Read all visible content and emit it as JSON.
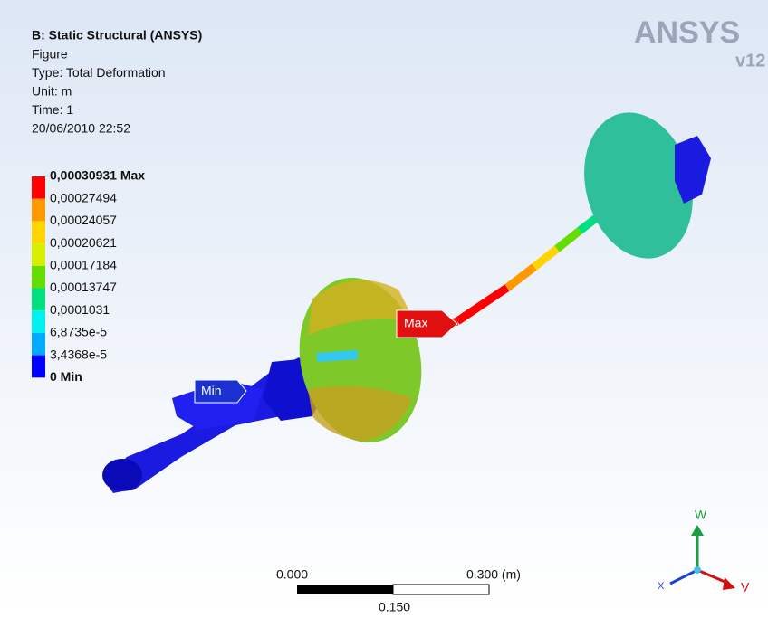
{
  "header": {
    "title": "B: Static Structural (ANSYS)",
    "lines": [
      "Figure",
      "Type: Total Deformation",
      "Unit: m",
      "Time: 1",
      "20/06/2010 22:52"
    ]
  },
  "logo": {
    "brand": "ANSYS",
    "version": "v12"
  },
  "legend": {
    "labels": [
      "0,00030931 Max",
      "0,00027494",
      "0,00024057",
      "0,00020621",
      "0,00017184",
      "0,00013747",
      "0,0001031",
      "6,8735e-5",
      "3,4368e-5",
      "0 Min"
    ],
    "colors": [
      "#ff0000",
      "#ff9900",
      "#ffd400",
      "#d8f000",
      "#66dd00",
      "#00e080",
      "#00f0f0",
      "#00aaff",
      "#0000ff"
    ]
  },
  "probes": {
    "max": "Max",
    "min": "Min"
  },
  "scale_bar": {
    "start": "0.000",
    "end": "0.300 (m)",
    "middle": "0.150"
  },
  "triad": {
    "w": "W",
    "x": "X",
    "v": "V"
  }
}
